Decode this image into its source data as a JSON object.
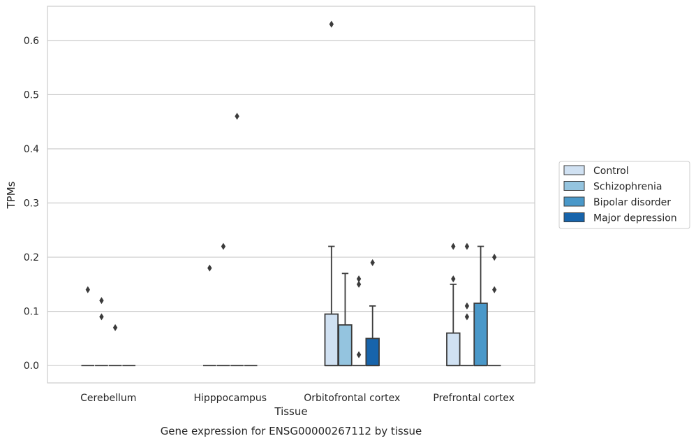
{
  "chart_data": {
    "type": "box",
    "xlabel": "Tissue",
    "ylabel": "TPMs",
    "caption": "Gene expression for ENSG00000267112 by tissue",
    "ylim": [
      -0.032,
      0.663
    ],
    "yticks": [
      0.0,
      0.1,
      0.2,
      0.3,
      0.4,
      0.5,
      0.6
    ],
    "ytick_labels": [
      "0.0",
      "0.1",
      "0.2",
      "0.3",
      "0.4",
      "0.5",
      "0.6"
    ],
    "grid": "horizontal",
    "legend_position": "right",
    "categories": [
      "Cerebellum",
      "Hipppocampus",
      "Orbitofrontal cortex",
      "Prefrontal cortex"
    ],
    "series": [
      {
        "name": "Control",
        "color": "#d0e1f2",
        "boxes": [
          {
            "q1": 0,
            "median": 0,
            "q3": 0,
            "whisker_low": 0,
            "whisker_high": 0,
            "outliers": [
              0.14
            ]
          },
          {
            "q1": 0,
            "median": 0,
            "q3": 0,
            "whisker_low": 0,
            "whisker_high": 0,
            "outliers": [
              0.18
            ]
          },
          {
            "q1": 0,
            "median": 0,
            "q3": 0.095,
            "whisker_low": 0,
            "whisker_high": 0.22,
            "outliers": [
              0.63
            ]
          },
          {
            "q1": 0,
            "median": 0,
            "q3": 0.06,
            "whisker_low": 0,
            "whisker_high": 0.15,
            "outliers": [
              0.16,
              0.22
            ]
          }
        ]
      },
      {
        "name": "Schizophrenia",
        "color": "#94c4df",
        "boxes": [
          {
            "q1": 0,
            "median": 0,
            "q3": 0,
            "whisker_low": 0,
            "whisker_high": 0,
            "outliers": [
              0.12,
              0.09
            ]
          },
          {
            "q1": 0,
            "median": 0,
            "q3": 0,
            "whisker_low": 0,
            "whisker_high": 0,
            "outliers": [
              0.22
            ]
          },
          {
            "q1": 0,
            "median": 0,
            "q3": 0.075,
            "whisker_low": 0,
            "whisker_high": 0.17,
            "outliers": []
          },
          {
            "q1": 0,
            "median": 0,
            "q3": 0,
            "whisker_low": 0,
            "whisker_high": 0,
            "outliers": [
              0.22,
              0.11,
              0.09
            ]
          }
        ]
      },
      {
        "name": "Bipolar disorder",
        "color": "#4a98c9",
        "boxes": [
          {
            "q1": 0,
            "median": 0,
            "q3": 0,
            "whisker_low": 0,
            "whisker_high": 0,
            "outliers": [
              0.07
            ]
          },
          {
            "q1": 0,
            "median": 0,
            "q3": 0,
            "whisker_low": 0,
            "whisker_high": 0,
            "outliers": [
              0.46
            ]
          },
          {
            "q1": 0,
            "median": 0,
            "q3": 0,
            "whisker_low": 0,
            "whisker_high": 0,
            "outliers": [
              0.16,
              0.15,
              0.02
            ]
          },
          {
            "q1": 0,
            "median": 0,
            "q3": 0.115,
            "whisker_low": 0,
            "whisker_high": 0.22,
            "outliers": []
          }
        ]
      },
      {
        "name": "Major depression",
        "color": "#1764ab",
        "boxes": [
          {
            "q1": 0,
            "median": 0,
            "q3": 0,
            "whisker_low": 0,
            "whisker_high": 0,
            "outliers": []
          },
          {
            "q1": 0,
            "median": 0,
            "q3": 0,
            "whisker_low": 0,
            "whisker_high": 0,
            "outliers": []
          },
          {
            "q1": 0,
            "median": 0,
            "q3": 0.05,
            "whisker_low": 0,
            "whisker_high": 0.11,
            "outliers": [
              0.19
            ]
          },
          {
            "q1": 0,
            "median": 0,
            "q3": 0,
            "whisker_low": 0,
            "whisker_high": 0,
            "outliers": [
              0.2,
              0.14
            ]
          }
        ]
      }
    ]
  }
}
